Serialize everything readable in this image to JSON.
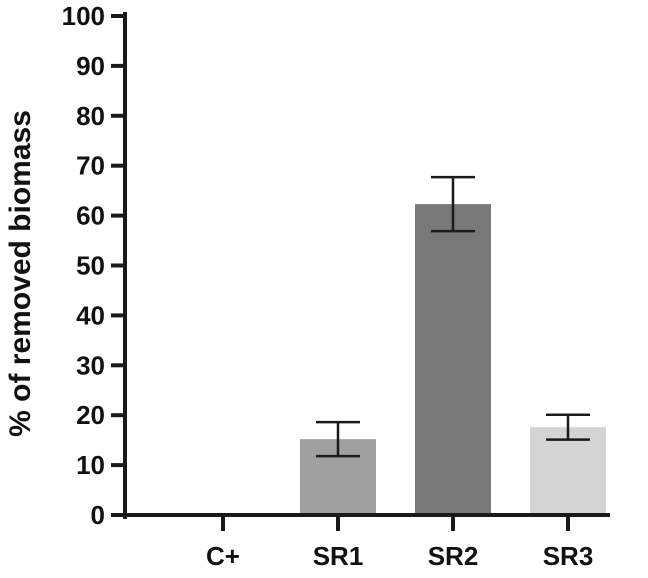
{
  "chart_data": {
    "type": "bar",
    "title": "",
    "xlabel": "",
    "ylabel": "% of removed biomass",
    "ylim": [
      0,
      100
    ],
    "yticks": [
      0,
      10,
      20,
      30,
      40,
      50,
      60,
      70,
      80,
      90,
      100
    ],
    "grid": false,
    "legend": "none",
    "categories": [
      "C+",
      "SR1",
      "SR2",
      "SR3"
    ],
    "values": [
      0,
      15.2,
      62.3,
      17.6
    ],
    "errors": [
      0,
      3.4,
      5.4,
      2.5
    ],
    "colors": [
      "#ffffff",
      "#a0a0a0",
      "#787878",
      "#d4d4d4"
    ]
  }
}
